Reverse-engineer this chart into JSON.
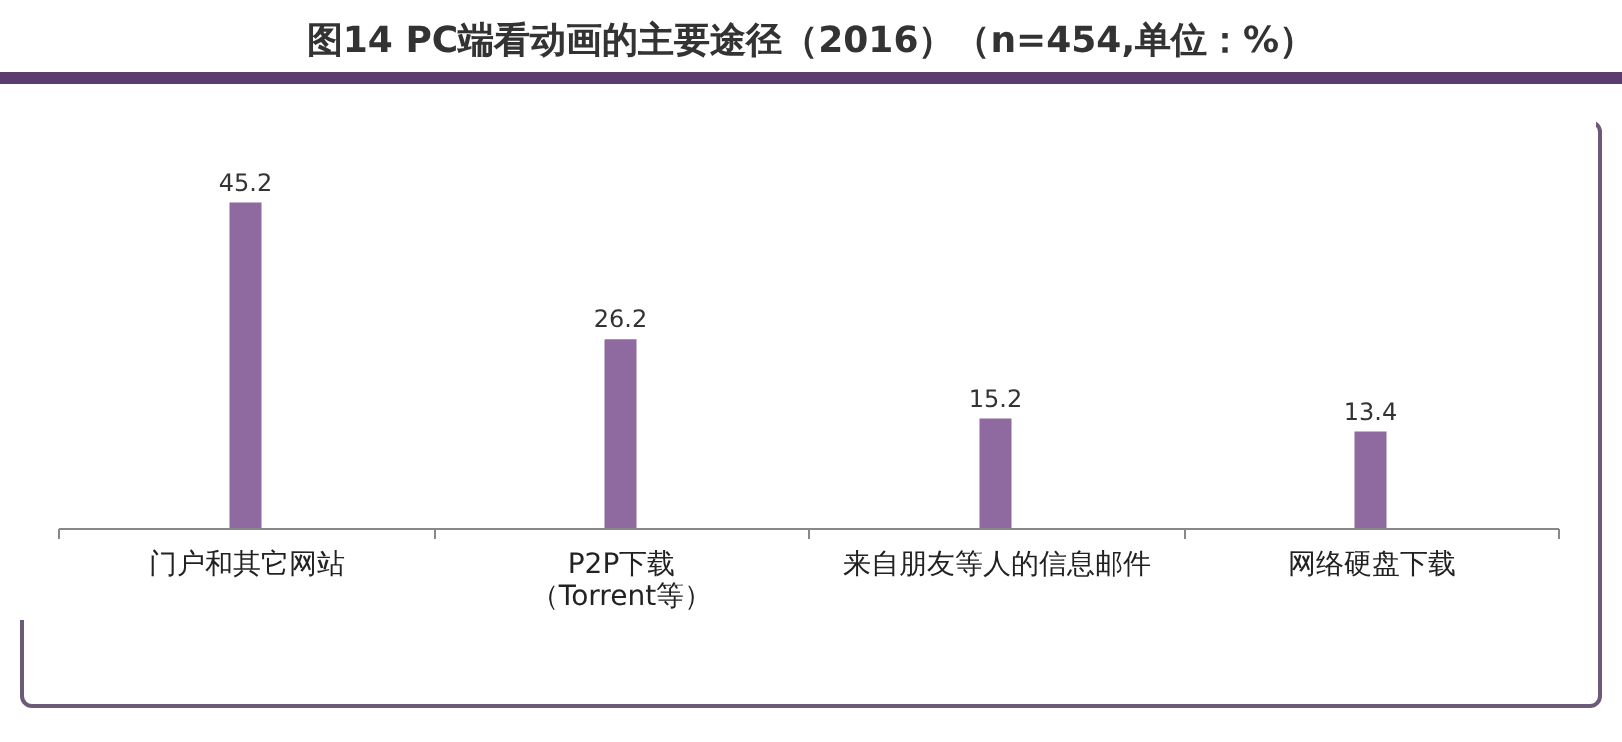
{
  "chart_data": {
    "type": "bar",
    "title": "图14 PC端看动画的主要途径（2016）（n=454,单位：%）",
    "categories": [
      "门户和其它网站",
      "P2P下载（Torrent等）",
      "来自朋友等人的信息邮件",
      "网络硬盘下载"
    ],
    "values": [
      45.2,
      26.2,
      15.2,
      13.4
    ],
    "color": "#8e6aa0",
    "data_labels": true
  }
}
